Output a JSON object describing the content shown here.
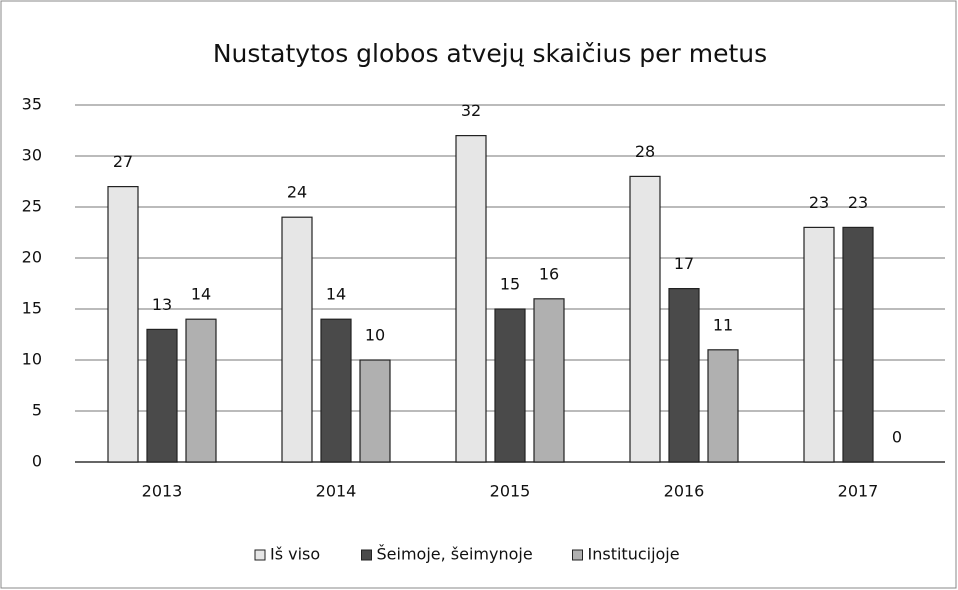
{
  "chart_data": {
    "type": "bar",
    "title": "Nustatytos globos atvejų skaičius per metus",
    "categories": [
      "2013",
      "2014",
      "2015",
      "2016",
      "2017"
    ],
    "series": [
      {
        "name": "Iš viso",
        "color": "#e6e6e6",
        "values": [
          27,
          24,
          32,
          28,
          23
        ]
      },
      {
        "name": "Šeimoje, šeimynoje",
        "color": "#4a4a4a",
        "values": [
          13,
          14,
          15,
          17,
          23
        ]
      },
      {
        "name": "Institucijoje",
        "color": "#b0b0b0",
        "values": [
          14,
          10,
          16,
          11,
          0
        ]
      }
    ],
    "ylim": [
      0,
      35
    ],
    "yticks": [
      0,
      5,
      10,
      15,
      20,
      25,
      30,
      35
    ],
    "grid": true,
    "legend": "bottom"
  }
}
